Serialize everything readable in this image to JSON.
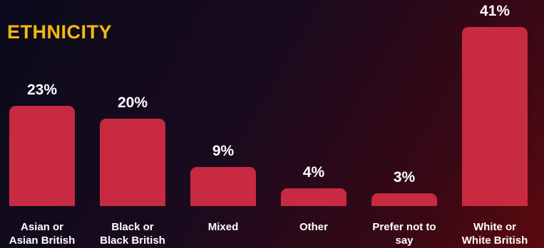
{
  "chart_data": {
    "type": "bar",
    "title": "ETHNICITY",
    "categories": [
      "Asian or Asian British",
      "Black or Black British",
      "Mixed",
      "Other",
      "Prefer not to say",
      "White or White British"
    ],
    "values": [
      23,
      20,
      9,
      4,
      3,
      41
    ],
    "value_labels": [
      "23%",
      "20%",
      "9%",
      "4%",
      "3%",
      "41%"
    ],
    "color": "#c72a41"
  }
}
